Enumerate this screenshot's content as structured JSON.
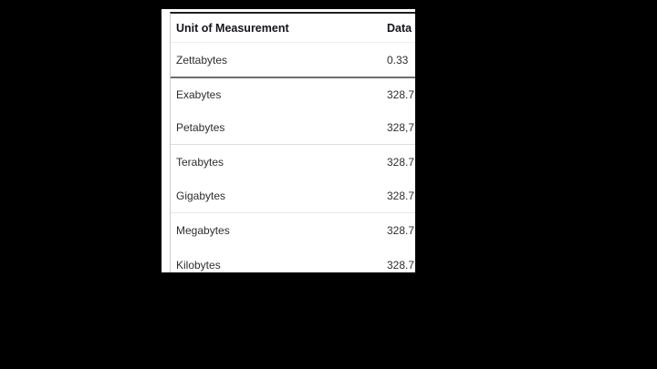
{
  "colors": {
    "letterbox": "#000000",
    "page_background": "#ffffff",
    "table_top_border": "#1f1f1f",
    "table_left_border": "#cbcbcb",
    "highlight_row_border": "#6e6e6e",
    "light_separator": "#dcdcdc",
    "header_text": "#14141b",
    "row_text": "#2e2e2e"
  },
  "table": {
    "columns": [
      {
        "label": "Unit of Measurement"
      },
      {
        "label": "Data"
      }
    ],
    "rows": [
      {
        "unit": "Zettabytes",
        "value": "0.33"
      },
      {
        "unit": "Exabytes",
        "value": "328.7"
      },
      {
        "unit": "Petabytes",
        "value": "328,7"
      },
      {
        "unit": "Terabytes",
        "value": "328.7"
      },
      {
        "unit": "Gigabytes",
        "value": "328.7"
      },
      {
        "unit": "Megabytes",
        "value": "328.7"
      },
      {
        "unit": "Kilobytes",
        "value": "328.7"
      }
    ]
  }
}
